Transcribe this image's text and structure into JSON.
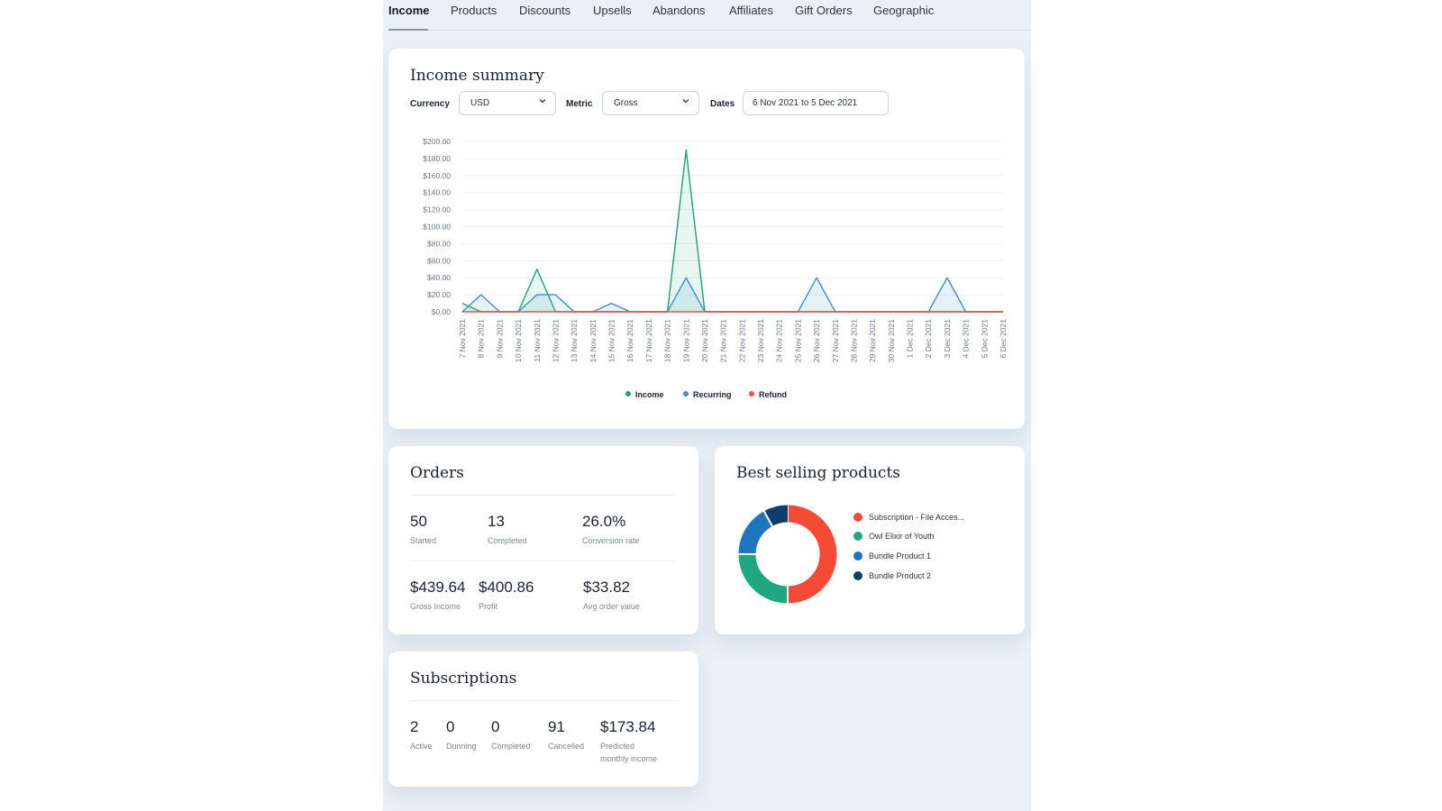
{
  "tabs": [
    {
      "label": "Income",
      "active": true
    },
    {
      "label": "Products"
    },
    {
      "label": "Discounts"
    },
    {
      "label": "Upsells"
    },
    {
      "label": "Abandons"
    },
    {
      "label": "Affiliates"
    },
    {
      "label": "Gift Orders"
    },
    {
      "label": "Geographic"
    }
  ],
  "income": {
    "title": "Income summary",
    "filters": {
      "currency_label": "Currency",
      "currency_value": "USD",
      "metric_label": "Metric",
      "metric_value": "Gross",
      "dates_label": "Dates",
      "dates_value": "6 Nov 2021 to 5 Dec 2021"
    }
  },
  "chart_data": {
    "type": "area",
    "ylim": [
      0,
      200
    ],
    "y_ticks": [
      "$0.00",
      "$20.00",
      "$40.00",
      "$60.00",
      "$80.00",
      "$100.00",
      "$120.00",
      "$140.00",
      "$160.00",
      "$180.00",
      "$200.00"
    ],
    "categories": [
      "7 Nov 2021",
      "8 Nov 2021",
      "9 Nov 2021",
      "10 Nov 2021",
      "11 Nov 2021",
      "12 Nov 2021",
      "13 Nov 2021",
      "14 Nov 2021",
      "15 Nov 2021",
      "16 Nov 2021",
      "17 Nov 2021",
      "18 Nov 2021",
      "19 Nov 2021",
      "20 Nov 2021",
      "21 Nov 2021",
      "22 Nov 2021",
      "23 Nov 2021",
      "24 Nov 2021",
      "25 Nov 2021",
      "26 Nov 2021",
      "27 Nov 2021",
      "28 Nov 2021",
      "29 Nov 2021",
      "30 Nov 2021",
      "1 Dec 2021",
      "2 Dec 2021",
      "3 Dec 2021",
      "4 Dec 2021",
      "5 Dec 2021",
      "6 Dec 2021"
    ],
    "series": [
      {
        "name": "Income",
        "color": "#1aa37a",
        "values": [
          10,
          0,
          0,
          0,
          50,
          0,
          0,
          0,
          0,
          0,
          0,
          0,
          190,
          0,
          0,
          0,
          0,
          0,
          0,
          0,
          0,
          0,
          0,
          0,
          0,
          0,
          0,
          0,
          0,
          0
        ]
      },
      {
        "name": "Recurring",
        "color": "#3d8fc6",
        "values": [
          0,
          20,
          0,
          0,
          20,
          20,
          0,
          0,
          10,
          0,
          0,
          0,
          40,
          0,
          0,
          0,
          0,
          0,
          0,
          40,
          0,
          0,
          0,
          0,
          0,
          0,
          40,
          0,
          0,
          0
        ]
      },
      {
        "name": "Refund",
        "color": "#f0503c",
        "values": [
          0,
          0,
          0,
          0,
          0,
          0,
          0,
          0,
          0,
          0,
          0,
          0,
          0,
          0,
          0,
          0,
          0,
          0,
          0,
          0,
          0,
          0,
          0,
          0,
          0,
          0,
          0,
          0,
          0,
          0
        ]
      }
    ],
    "legend": [
      "Income",
      "Recurring",
      "Refund"
    ],
    "legend_position": "bottom",
    "grid": true
  },
  "orders": {
    "title": "Orders",
    "stats_row1": [
      {
        "value": "50",
        "label": "Started"
      },
      {
        "value": "13",
        "label": "Completed"
      },
      {
        "value": "26.0%",
        "label": "Conversion rate"
      }
    ],
    "stats_row2": [
      {
        "value": "$439.64",
        "label": "Gross Income"
      },
      {
        "value": "$400.86",
        "label": "Profit"
      },
      {
        "value": "$33.82",
        "label": "Avg order value"
      }
    ]
  },
  "best_selling": {
    "title": "Best selling products",
    "donut": [
      {
        "name": "Subscription - File Acces...",
        "color": "#f54a33",
        "share": 0.5
      },
      {
        "name": "Owl Elixir of Youth",
        "color": "#1fa87f",
        "share": 0.25
      },
      {
        "name": "Bundle Product 1",
        "color": "#1f76bf",
        "share": 0.17
      },
      {
        "name": "Bundle Product 2",
        "color": "#0e3f6b",
        "share": 0.08
      }
    ]
  },
  "subscriptions": {
    "title": "Subscriptions",
    "stats": [
      {
        "value": "2",
        "label": "Active"
      },
      {
        "value": "0",
        "label": "Dunning"
      },
      {
        "value": "0",
        "label": "Completed"
      },
      {
        "value": "91",
        "label": "Cancelled"
      },
      {
        "value": "$173.84",
        "label_line1": "Predicted",
        "label_line2": "monthly income"
      }
    ]
  }
}
